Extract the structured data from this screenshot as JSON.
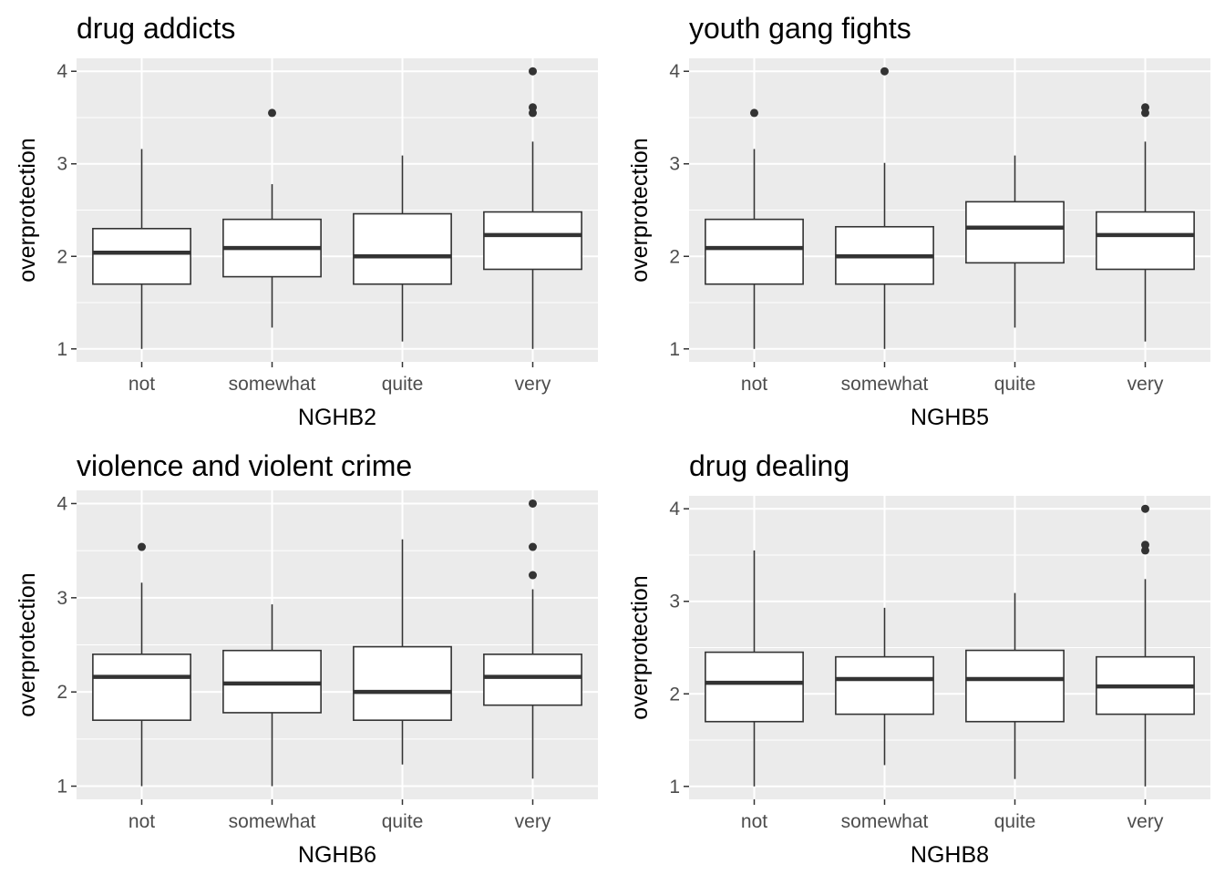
{
  "chart_data": [
    {
      "type": "box",
      "title": "drug addicts",
      "xlabel": "NGHB2",
      "ylabel": "overprotection",
      "categories": [
        "not",
        "somewhat",
        "quite",
        "very"
      ],
      "y_ticks": [
        "1",
        "2",
        "3",
        "4"
      ],
      "ylim": [
        0.86,
        4.14
      ],
      "grid": true,
      "boxes": [
        {
          "category": "not",
          "whisker_low": 1.0,
          "q1": 1.7,
          "median": 2.04,
          "q3": 2.3,
          "whisker_high": 3.16,
          "outliers": []
        },
        {
          "category": "somewhat",
          "whisker_low": 1.23,
          "q1": 1.78,
          "median": 2.09,
          "q3": 2.4,
          "whisker_high": 2.78,
          "outliers": [
            3.55
          ]
        },
        {
          "category": "quite",
          "whisker_low": 1.08,
          "q1": 1.7,
          "median": 2.0,
          "q3": 2.46,
          "whisker_high": 3.09,
          "outliers": []
        },
        {
          "category": "very",
          "whisker_low": 1.0,
          "q1": 1.86,
          "median": 2.23,
          "q3": 2.48,
          "whisker_high": 3.24,
          "outliers": [
            3.55,
            3.61,
            4.0
          ]
        }
      ]
    },
    {
      "type": "box",
      "title": "youth gang fights",
      "xlabel": "NGHB5",
      "ylabel": "overprotection",
      "categories": [
        "not",
        "somewhat",
        "quite",
        "very"
      ],
      "y_ticks": [
        "1",
        "2",
        "3",
        "4"
      ],
      "ylim": [
        0.86,
        4.14
      ],
      "grid": true,
      "boxes": [
        {
          "category": "not",
          "whisker_low": 1.0,
          "q1": 1.7,
          "median": 2.09,
          "q3": 2.4,
          "whisker_high": 3.16,
          "outliers": [
            3.55
          ]
        },
        {
          "category": "somewhat",
          "whisker_low": 1.0,
          "q1": 1.7,
          "median": 2.0,
          "q3": 2.32,
          "whisker_high": 3.01,
          "outliers": [
            4.0
          ]
        },
        {
          "category": "quite",
          "whisker_low": 1.23,
          "q1": 1.93,
          "median": 2.31,
          "q3": 2.59,
          "whisker_high": 3.09,
          "outliers": []
        },
        {
          "category": "very",
          "whisker_low": 1.08,
          "q1": 1.86,
          "median": 2.23,
          "q3": 2.48,
          "whisker_high": 3.24,
          "outliers": [
            3.55,
            3.61
          ]
        }
      ]
    },
    {
      "type": "box",
      "title": "violence and violent crime",
      "xlabel": "NGHB6",
      "ylabel": "overprotection",
      "categories": [
        "not",
        "somewhat",
        "quite",
        "very"
      ],
      "y_ticks": [
        "1",
        "2",
        "3",
        "4"
      ],
      "ylim": [
        0.86,
        4.14
      ],
      "grid": true,
      "boxes": [
        {
          "category": "not",
          "whisker_low": 1.0,
          "q1": 1.7,
          "median": 2.16,
          "q3": 2.4,
          "whisker_high": 3.16,
          "outliers": [
            3.54
          ]
        },
        {
          "category": "somewhat",
          "whisker_low": 1.0,
          "q1": 1.78,
          "median": 2.09,
          "q3": 2.44,
          "whisker_high": 2.93,
          "outliers": []
        },
        {
          "category": "quite",
          "whisker_low": 1.23,
          "q1": 1.7,
          "median": 2.0,
          "q3": 2.48,
          "whisker_high": 3.62,
          "outliers": []
        },
        {
          "category": "very",
          "whisker_low": 1.08,
          "q1": 1.86,
          "median": 2.16,
          "q3": 2.4,
          "whisker_high": 3.09,
          "outliers": [
            3.24,
            3.54,
            4.0
          ]
        }
      ]
    },
    {
      "type": "box",
      "title": "drug dealing",
      "xlabel": "NGHB8",
      "ylabel": "overprotection",
      "categories": [
        "not",
        "somewhat",
        "quite",
        "very"
      ],
      "y_ticks": [
        "1",
        "2",
        "3",
        "4"
      ],
      "ylim": [
        0.86,
        4.14
      ],
      "grid": true,
      "boxes": [
        {
          "category": "not",
          "whisker_low": 1.0,
          "q1": 1.7,
          "median": 2.12,
          "q3": 2.45,
          "whisker_high": 3.55,
          "outliers": []
        },
        {
          "category": "somewhat",
          "whisker_low": 1.23,
          "q1": 1.78,
          "median": 2.16,
          "q3": 2.4,
          "whisker_high": 2.93,
          "outliers": []
        },
        {
          "category": "quite",
          "whisker_low": 1.08,
          "q1": 1.7,
          "median": 2.16,
          "q3": 2.47,
          "whisker_high": 3.09,
          "outliers": []
        },
        {
          "category": "very",
          "whisker_low": 1.0,
          "q1": 1.78,
          "median": 2.08,
          "q3": 2.4,
          "whisker_high": 3.24,
          "outliers": [
            3.55,
            3.61,
            4.0
          ]
        }
      ]
    }
  ]
}
